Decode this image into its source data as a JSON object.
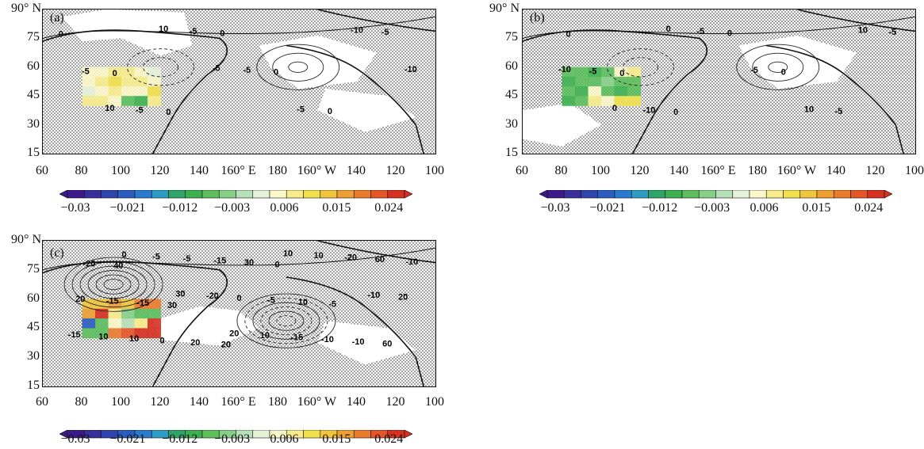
{
  "figure": {
    "y_ticks": [
      "90° N",
      "75",
      "60",
      "45",
      "30",
      "15"
    ],
    "x_ticks": [
      "60",
      "80",
      "100",
      "120",
      "140",
      "160° E",
      "180",
      "160° W",
      "140",
      "120",
      "100"
    ],
    "colorbar": {
      "labels": [
        "−0.03",
        "−0.021",
        "−0.012",
        "−0.003",
        "0.006",
        "0.015",
        "0.024"
      ],
      "colors": [
        "#3d1a8a",
        "#3a2e9c",
        "#2f45ad",
        "#2a5ec0",
        "#2a7bcf",
        "#2f9cc5",
        "#2fa46a",
        "#3cb04f",
        "#5cbf5c",
        "#86cf86",
        "#b8e0b8",
        "#e4f2d8",
        "#fbf7c8",
        "#f6ec8c",
        "#f1e04c",
        "#f0c53c",
        "#ee9e32",
        "#ec7a2c",
        "#e65526",
        "#d63020"
      ]
    },
    "panels": [
      {
        "label": "(a)",
        "contour_labels": [
          "0",
          "0",
          "0",
          "0",
          "0",
          "0",
          "-5",
          "-5",
          "-5",
          "-5",
          "-5",
          "-5",
          "-10",
          "-10",
          "10",
          "10",
          "-5"
        ]
      },
      {
        "label": "(b)",
        "contour_labels": [
          "0",
          "0",
          "0",
          "0",
          "0",
          "-5",
          "-5",
          "-5",
          "-10",
          "-5",
          "-5",
          "10",
          "10",
          "-10",
          "0",
          "0"
        ]
      },
      {
        "label": "(c)",
        "contour_labels": [
          "40",
          "30",
          "20",
          "0",
          "-5",
          "60",
          "-20",
          "-15",
          "20",
          "30",
          "10",
          "-10",
          "-10",
          "-15",
          "0",
          "-15",
          "-5",
          "-10",
          "60",
          "20",
          "10",
          "-5",
          "0",
          "-15",
          "-20",
          "20",
          "10",
          "-5",
          "-20",
          "10",
          "10",
          "-10",
          "-15",
          "0",
          "30",
          "20",
          "10"
        ]
      }
    ]
  }
}
